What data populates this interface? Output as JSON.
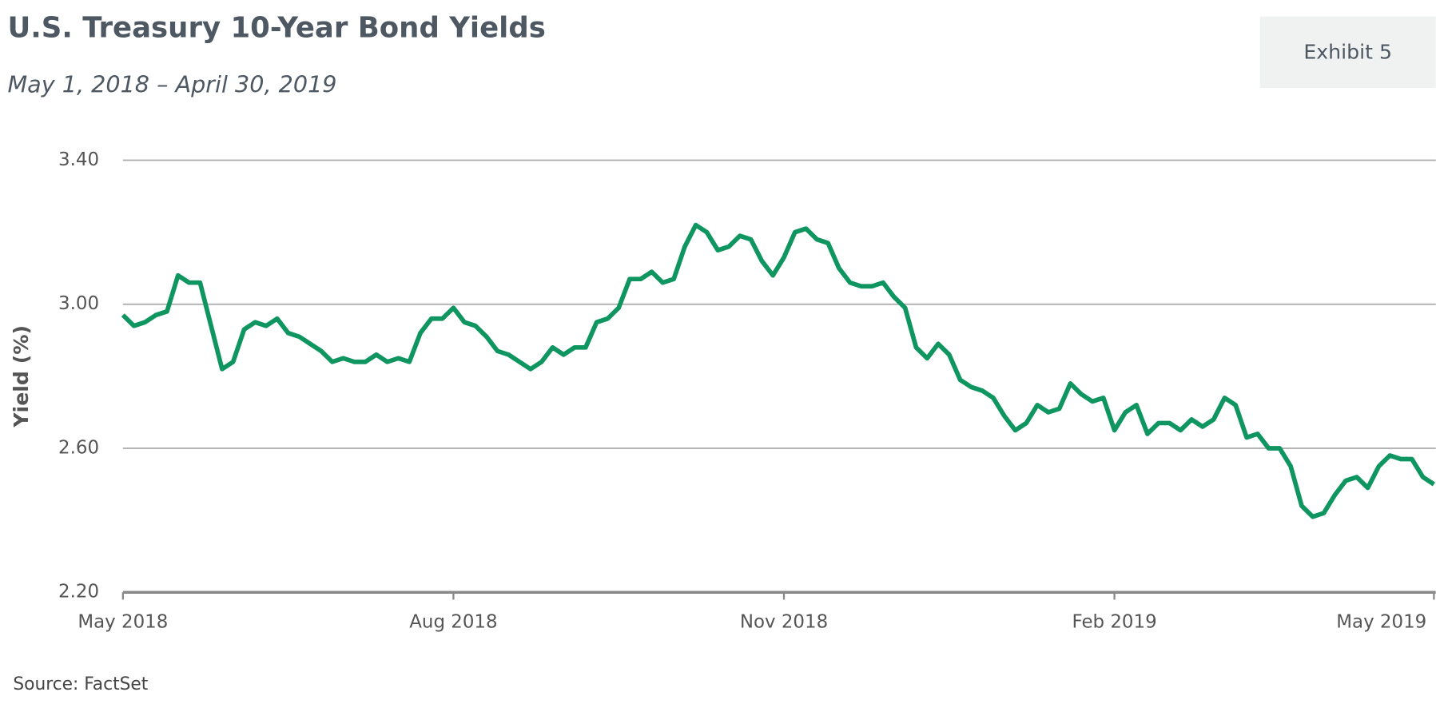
{
  "chart_data": {
    "type": "line",
    "title": "U.S. Treasury 10-Year Bond Yields",
    "subtitle": "May 1, 2018 – April 30, 2019",
    "exhibit": "Exhibit 5",
    "y_label": "Yield (%)",
    "source": "Source: FactSet",
    "color": "#0f9560",
    "grid": true,
    "ylim": [
      2.2,
      3.4
    ],
    "yticks": [
      {
        "value": 2.2,
        "label": "2.20"
      },
      {
        "value": 2.6,
        "label": "2.60"
      },
      {
        "value": 3.0,
        "label": "3.00"
      },
      {
        "value": 3.4,
        "label": "3.40"
      }
    ],
    "categories": [
      "May 2018",
      null,
      null,
      null,
      null,
      null,
      null,
      null,
      null,
      null,
      null,
      null,
      null,
      null,
      null,
      null,
      null,
      null,
      null,
      null,
      null,
      null,
      null,
      null,
      null,
      null,
      null,
      null,
      null,
      null,
      "Aug 2018",
      null,
      null,
      null,
      null,
      null,
      null,
      null,
      null,
      null,
      null,
      null,
      null,
      null,
      null,
      null,
      null,
      null,
      null,
      null,
      null,
      null,
      null,
      null,
      null,
      null,
      null,
      null,
      null,
      null,
      "Nov 2018",
      null,
      null,
      null,
      null,
      null,
      null,
      null,
      null,
      null,
      null,
      null,
      null,
      null,
      null,
      null,
      null,
      null,
      null,
      null,
      null,
      null,
      null,
      null,
      null,
      null,
      null,
      null,
      null,
      null,
      "Feb 2019",
      null,
      null,
      null,
      null,
      null,
      null,
      null,
      null,
      null,
      null,
      null,
      null,
      null,
      null,
      null,
      null,
      null,
      null,
      null,
      null,
      null,
      null,
      null,
      null,
      null,
      null,
      null,
      null,
      "May 2019"
    ],
    "values": [
      2.97,
      2.94,
      2.95,
      2.97,
      2.98,
      3.08,
      3.06,
      3.06,
      2.94,
      2.82,
      2.84,
      2.93,
      2.95,
      2.94,
      2.96,
      2.92,
      2.91,
      2.89,
      2.87,
      2.84,
      2.85,
      2.84,
      2.84,
      2.86,
      2.84,
      2.85,
      2.84,
      2.92,
      2.96,
      2.96,
      2.99,
      2.95,
      2.94,
      2.91,
      2.87,
      2.86,
      2.84,
      2.82,
      2.84,
      2.88,
      2.86,
      2.88,
      2.88,
      2.95,
      2.96,
      2.99,
      3.07,
      3.07,
      3.09,
      3.06,
      3.07,
      3.16,
      3.22,
      3.2,
      3.15,
      3.16,
      3.19,
      3.18,
      3.12,
      3.08,
      3.13,
      3.2,
      3.21,
      3.18,
      3.17,
      3.1,
      3.06,
      3.05,
      3.05,
      3.06,
      3.02,
      2.99,
      2.88,
      2.85,
      2.89,
      2.86,
      2.79,
      2.77,
      2.76,
      2.74,
      2.69,
      2.65,
      2.67,
      2.72,
      2.7,
      2.71,
      2.78,
      2.75,
      2.73,
      2.74,
      2.65,
      2.7,
      2.72,
      2.64,
      2.67,
      2.67,
      2.65,
      2.68,
      2.66,
      2.68,
      2.74,
      2.72,
      2.63,
      2.64,
      2.6,
      2.6,
      2.55,
      2.44,
      2.41,
      2.42,
      2.47,
      2.51,
      2.52,
      2.49,
      2.55,
      2.58,
      2.57,
      2.57,
      2.52,
      2.5
    ]
  }
}
